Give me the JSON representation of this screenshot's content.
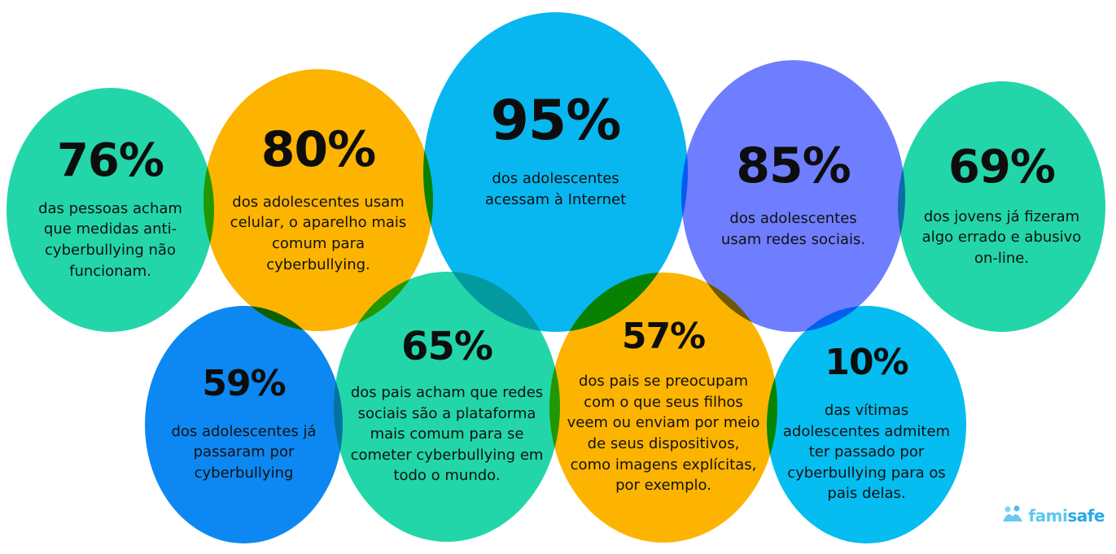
{
  "colors": {
    "teal": "#22d6a9",
    "orange": "#fdb400",
    "cyan": "#08b7f0",
    "periwinkle": "#6e7eff",
    "blue": "#0d88f2",
    "sky": "#05bdf0"
  },
  "stats": {
    "s76": {
      "value": "76%",
      "text": "das pessoas acham que medidas anti-cyberbullying não funcionam."
    },
    "s80": {
      "value": "80%",
      "text": "dos adolescentes usam celular, o aparelho mais comum para cyberbullying."
    },
    "s95": {
      "value": "95%",
      "text": "dos adolescentes acessam à Internet"
    },
    "s85": {
      "value": "85%",
      "text": "dos adolescentes usam redes sociais."
    },
    "s69": {
      "value": "69%",
      "text": "dos jovens já fizeram algo errado e abusivo on-line."
    },
    "s59": {
      "value": "59%",
      "text": "dos adolescentes já passaram por cyberbullying"
    },
    "s65": {
      "value": "65%",
      "text": "dos pais acham que redes sociais são a plataforma mais comum para se cometer cyberbullying em todo o mundo."
    },
    "s57": {
      "value": "57%",
      "text": "dos pais se preocupam com o que seus filhos veem ou enviam por meio de seus dispositivos, como imagens explícitas, por exemplo."
    },
    "s10": {
      "value": "10%",
      "text": "das vítimas adolescentes admitem ter passado por cyberbullying para os pais delas."
    }
  },
  "logo": {
    "part1": "fami",
    "part2": "safe",
    "icon": "family-icon",
    "color1": "#5fc8ee",
    "color2": "#2aa8e6"
  }
}
